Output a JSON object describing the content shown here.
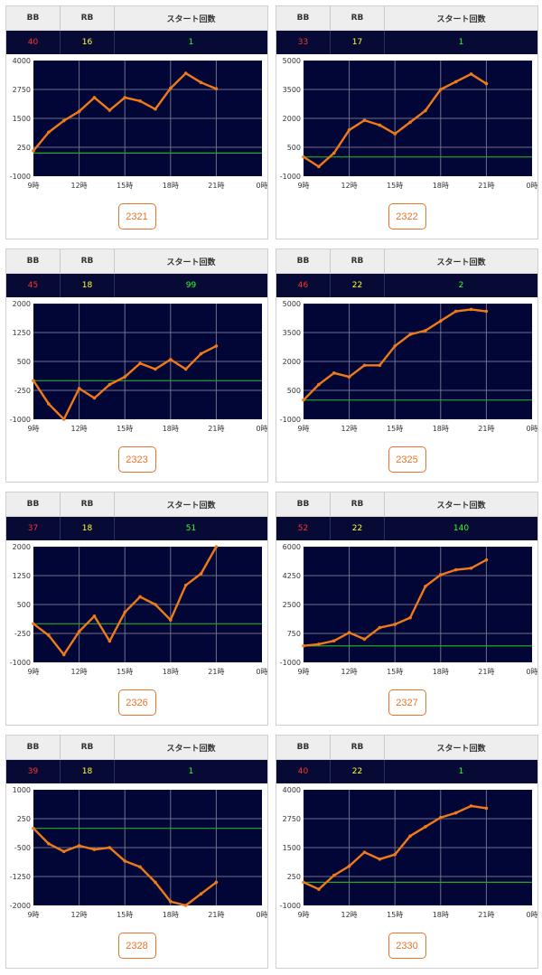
{
  "header": {
    "bb": "BB",
    "rb": "RB",
    "start": "スタート回数"
  },
  "machines": [
    {
      "number": "2321",
      "bb": "40",
      "rb": "16",
      "start": "1",
      "chart_data": {
        "type": "line",
        "ylim": [
          -1000,
          4000
        ],
        "yticks": [
          "4000",
          "2750",
          "1500",
          "250",
          "-1000"
        ],
        "xticks": [
          "9時",
          "12時",
          "15時",
          "18時",
          "21時",
          "0時"
        ],
        "baseline": 0,
        "x": [
          9,
          10,
          11,
          12,
          13,
          14,
          15,
          16,
          17,
          18,
          19,
          20,
          21
        ],
        "values": [
          100,
          900,
          1400,
          1800,
          2400,
          1850,
          2400,
          2250,
          1900,
          2800,
          3450,
          3050,
          2780
        ]
      }
    },
    {
      "number": "2322",
      "bb": "33",
      "rb": "17",
      "start": "1",
      "chart_data": {
        "type": "line",
        "ylim": [
          -1000,
          5000
        ],
        "yticks": [
          "5000",
          "3500",
          "2000",
          "500",
          "-1000"
        ],
        "xticks": [
          "9時",
          "12時",
          "15時",
          "18時",
          "21時",
          "0時"
        ],
        "baseline": 0,
        "x": [
          9,
          10,
          11,
          12,
          13,
          14,
          15,
          16,
          17,
          18,
          19,
          20,
          21
        ],
        "values": [
          0,
          -500,
          200,
          1400,
          1900,
          1650,
          1200,
          1800,
          2400,
          3500,
          3900,
          4300,
          3800
        ]
      }
    },
    {
      "number": "2323",
      "bb": "45",
      "rb": "18",
      "start": "99",
      "chart_data": {
        "type": "line",
        "ylim": [
          -1000,
          2000
        ],
        "yticks": [
          "2000",
          "1250",
          "500",
          "-250",
          "-1000"
        ],
        "xticks": [
          "9時",
          "12時",
          "15時",
          "18時",
          "21時",
          "0時"
        ],
        "baseline": 0,
        "x": [
          9,
          10,
          11,
          12,
          13,
          14,
          15,
          16,
          17,
          18,
          19,
          20,
          21
        ],
        "values": [
          0,
          -600,
          -1000,
          -200,
          -450,
          -100,
          100,
          450,
          300,
          550,
          300,
          700,
          900
        ]
      }
    },
    {
      "number": "2325",
      "bb": "46",
      "rb": "22",
      "start": "2",
      "chart_data": {
        "type": "line",
        "ylim": [
          -1000,
          5000
        ],
        "yticks": [
          "5000",
          "3500",
          "2000",
          "500",
          "-1000"
        ],
        "xticks": [
          "9時",
          "12時",
          "15時",
          "18時",
          "21時",
          "0時"
        ],
        "baseline": 0,
        "x": [
          9,
          10,
          11,
          12,
          13,
          14,
          15,
          16,
          17,
          18,
          19,
          20,
          21
        ],
        "values": [
          0,
          800,
          1400,
          1200,
          1800,
          1800,
          2800,
          3400,
          3600,
          4100,
          4600,
          4700,
          4600
        ]
      }
    },
    {
      "number": "2326",
      "bb": "37",
      "rb": "18",
      "start": "51",
      "chart_data": {
        "type": "line",
        "ylim": [
          -1000,
          2000
        ],
        "yticks": [
          "2000",
          "1250",
          "500",
          "-250",
          "-1000"
        ],
        "xticks": [
          "9時",
          "12時",
          "15時",
          "18時",
          "21時",
          "0時"
        ],
        "baseline": 0,
        "x": [
          9,
          10,
          11,
          12,
          13,
          14,
          15,
          16,
          17,
          18,
          19,
          20,
          21
        ],
        "values": [
          0,
          -300,
          -800,
          -200,
          200,
          -450,
          300,
          700,
          500,
          100,
          1000,
          1300,
          2000
        ]
      }
    },
    {
      "number": "2327",
      "bb": "52",
      "rb": "22",
      "start": "140",
      "chart_data": {
        "type": "line",
        "ylim": [
          -1000,
          6000
        ],
        "yticks": [
          "6000",
          "4250",
          "2500",
          "750",
          "-1000"
        ],
        "xticks": [
          "9時",
          "12時",
          "15時",
          "18時",
          "21時",
          "0時"
        ],
        "baseline": 0,
        "x": [
          9,
          10,
          11,
          12,
          13,
          14,
          15,
          16,
          17,
          18,
          19,
          20,
          21
        ],
        "values": [
          0,
          100,
          300,
          800,
          400,
          1100,
          1300,
          1700,
          3600,
          4300,
          4600,
          4700,
          5200
        ]
      }
    },
    {
      "number": "2328",
      "bb": "39",
      "rb": "18",
      "start": "1",
      "chart_data": {
        "type": "line",
        "ylim": [
          -2000,
          1000
        ],
        "yticks": [
          "1000",
          "250",
          "-500",
          "-1250",
          "-2000"
        ],
        "xticks": [
          "9時",
          "12時",
          "15時",
          "18時",
          "21時",
          "0時"
        ],
        "baseline": 0,
        "x": [
          9,
          10,
          11,
          12,
          13,
          14,
          15,
          16,
          17,
          18,
          19,
          20,
          21
        ],
        "values": [
          0,
          -400,
          -600,
          -450,
          -550,
          -500,
          -850,
          -1000,
          -1400,
          -1900,
          -2000,
          -1700,
          -1400
        ]
      }
    },
    {
      "number": "2330",
      "bb": "40",
      "rb": "22",
      "start": "1",
      "chart_data": {
        "type": "line",
        "ylim": [
          -1000,
          4000
        ],
        "yticks": [
          "4000",
          "2750",
          "1500",
          "250",
          "-1000"
        ],
        "xticks": [
          "9時",
          "12時",
          "15時",
          "18時",
          "21時",
          "0時"
        ],
        "baseline": 0,
        "x": [
          9,
          10,
          11,
          12,
          13,
          14,
          15,
          16,
          17,
          18,
          19,
          20,
          21
        ],
        "values": [
          0,
          -300,
          300,
          700,
          1300,
          1000,
          1200,
          2000,
          2400,
          2800,
          3000,
          3300,
          3200
        ]
      }
    }
  ],
  "colors": {
    "chart_bg": "#020637",
    "line": "#f07a18",
    "baseline": "#22aa22",
    "grid": "#6d7088",
    "bb": "#ff3030",
    "rb": "#ffff33",
    "start": "#33ff33",
    "button": "#e8742a"
  }
}
